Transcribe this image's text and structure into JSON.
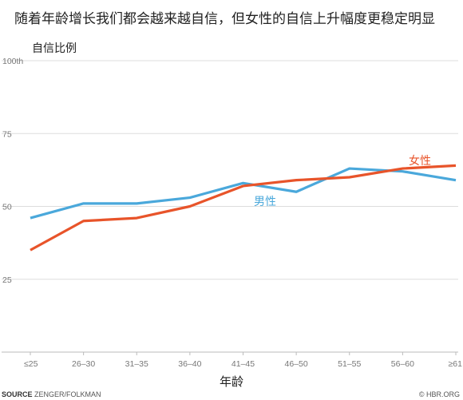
{
  "chart_data": {
    "type": "line",
    "title": "随着年龄增长我们都会越来越自信，但女性的自信上升幅度更稳定明显",
    "ylabel": "自信比例",
    "xlabel": "年龄",
    "categories": [
      "≤25",
      "26–30",
      "31–35",
      "36–40",
      "41–45",
      "46–50",
      "51–55",
      "56–60",
      "≥61"
    ],
    "ylim": [
      0,
      100
    ],
    "yticks": [
      {
        "value": 100,
        "label": "100th"
      },
      {
        "value": 75,
        "label": "75"
      },
      {
        "value": 50,
        "label": "50"
      },
      {
        "value": 25,
        "label": "25"
      }
    ],
    "grid": true,
    "series": [
      {
        "name": "男性",
        "color": "#4aa8db",
        "values": [
          46,
          51,
          51,
          53,
          58,
          55,
          63,
          62,
          59
        ]
      },
      {
        "name": "女性",
        "color": "#e8542a",
        "values": [
          35,
          45,
          46,
          50,
          57,
          59,
          60,
          63,
          64
        ]
      }
    ]
  },
  "source": {
    "label": "SOURCE",
    "text": "ZENGER/FOLKMAN"
  },
  "credit": "© HBR.ORG"
}
